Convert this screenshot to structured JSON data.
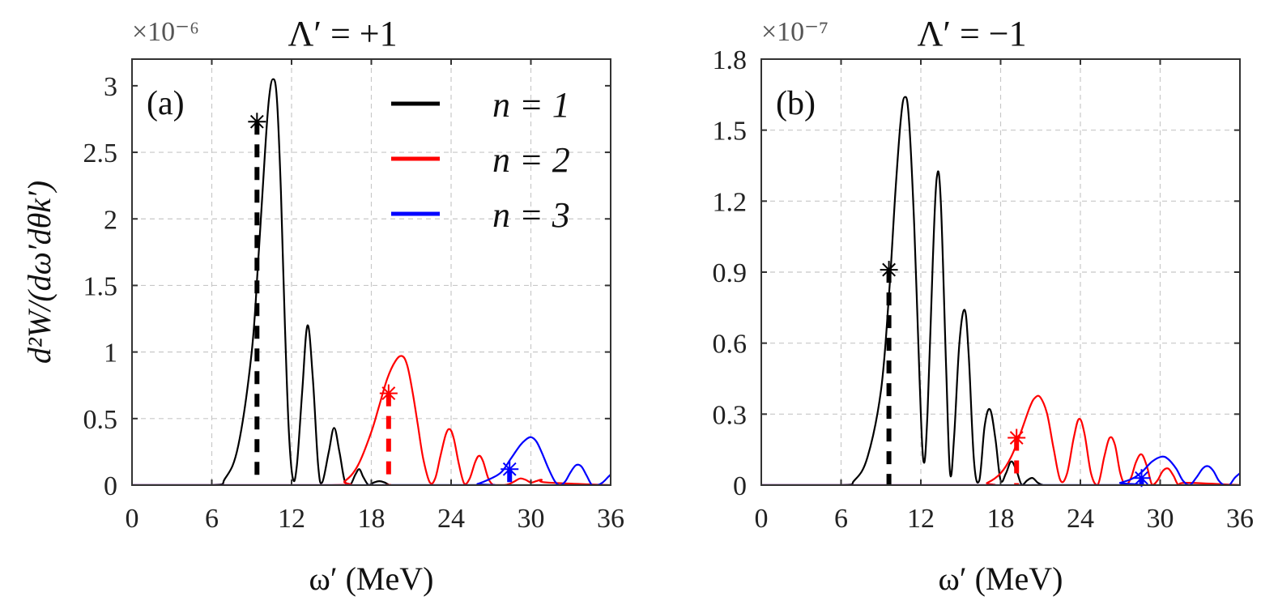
{
  "figure": {
    "ylabel": "d²W/(dω′dθk′)",
    "legend": [
      {
        "label": "n = 1",
        "color": "#000000"
      },
      {
        "label": "n = 2",
        "color": "#ff0000"
      },
      {
        "label": "n = 3",
        "color": "#0000ff"
      }
    ]
  },
  "chart_data": [
    {
      "type": "line",
      "panel_label": "(a)",
      "title": "Λ′ = +1",
      "xlabel": "ω′ (MeV)",
      "scale_label": "×10⁻⁶",
      "xlim": [
        0,
        36
      ],
      "ylim": [
        0,
        3.2
      ],
      "xticks": [
        0,
        6,
        12,
        18,
        24,
        30,
        36
      ],
      "xtick_labels": [
        "0",
        "6",
        "12",
        "18",
        "24",
        "30",
        "36"
      ],
      "yticks": [
        0,
        0.5,
        1,
        1.5,
        2,
        2.5,
        3
      ],
      "ytick_labels": [
        "0",
        "0.5",
        "1",
        "1.5",
        "2",
        "2.5",
        "3"
      ],
      "grid": true,
      "series": [
        {
          "name": "n = 1",
          "color": "#000000",
          "x": [
            0,
            6,
            7,
            8,
            9,
            9.5,
            10,
            10.3,
            10.6,
            10.9,
            11.2,
            11.5,
            11.8,
            12.1,
            12.4,
            12.8,
            13.2,
            13.6,
            14.0,
            14.3,
            14.8,
            15.2,
            15.6,
            16.0,
            16.4,
            16.8,
            17.1,
            17.4,
            17.8,
            18.2,
            18.6,
            19.0,
            19.4,
            19.8,
            20.2,
            36
          ],
          "y": [
            0,
            0,
            0.05,
            0.3,
            1.0,
            1.7,
            2.5,
            2.9,
            3.05,
            2.9,
            2.2,
            1.2,
            0.4,
            0.05,
            0.15,
            0.7,
            1.2,
            0.8,
            0.15,
            0.02,
            0.25,
            0.43,
            0.25,
            0.03,
            0.0,
            0.08,
            0.12,
            0.06,
            0.0,
            0.02,
            0.03,
            0.02,
            0.0,
            0.0,
            0.0,
            0.0
          ]
        },
        {
          "name": "n = 2",
          "color": "#ff0000",
          "x": [
            0,
            15,
            16,
            17,
            18,
            18.6,
            19.2,
            19.8,
            20.3,
            20.7,
            21.1,
            21.5,
            21.9,
            22.4,
            22.8,
            23.2,
            23.6,
            23.9,
            24.2,
            24.6,
            25.0,
            25.4,
            25.8,
            26.1,
            26.4,
            26.8,
            27.2,
            27.6,
            28.0,
            28.4,
            28.8,
            29.2,
            29.6,
            30.0,
            30.4,
            30.8,
            31.2,
            36
          ],
          "y": [
            0,
            0,
            0.03,
            0.15,
            0.4,
            0.6,
            0.8,
            0.93,
            0.97,
            0.9,
            0.7,
            0.45,
            0.2,
            0.02,
            0.05,
            0.22,
            0.38,
            0.42,
            0.35,
            0.15,
            0.01,
            0.05,
            0.17,
            0.22,
            0.18,
            0.05,
            0.0,
            0.0,
            0.0,
            0.01,
            0.03,
            0.05,
            0.04,
            0.02,
            0.03,
            0.04,
            0.02,
            0.0
          ]
        },
        {
          "name": "n = 3",
          "color": "#0000ff",
          "x": [
            0,
            25,
            26,
            27,
            27.8,
            28.5,
            29.2,
            29.6,
            30.0,
            30.4,
            30.8,
            31.3,
            31.8,
            32.2,
            32.6,
            33.0,
            33.4,
            33.8,
            34.2,
            34.6,
            35.0,
            35.4,
            35.8,
            36
          ],
          "y": [
            0,
            0,
            0.01,
            0.05,
            0.1,
            0.2,
            0.3,
            0.34,
            0.36,
            0.33,
            0.25,
            0.13,
            0.03,
            0.0,
            0.03,
            0.1,
            0.15,
            0.14,
            0.07,
            0.0,
            0.0,
            0.02,
            0.06,
            0.08
          ]
        }
      ],
      "markers": [
        {
          "name": "n = 1",
          "color": "#000000",
          "x": 9.4,
          "y": 2.73
        },
        {
          "name": "n = 2",
          "color": "#ff0000",
          "x": 19.3,
          "y": 0.69
        },
        {
          "name": "n = 3",
          "color": "#0000ff",
          "x": 28.4,
          "y": 0.12
        }
      ]
    },
    {
      "type": "line",
      "panel_label": "(b)",
      "title": "Λ′ = −1",
      "xlabel": "ω′ (MeV)",
      "scale_label": "×10⁻⁷",
      "xlim": [
        0,
        36
      ],
      "ylim": [
        0,
        1.8
      ],
      "xticks": [
        0,
        6,
        12,
        18,
        24,
        30,
        36
      ],
      "xtick_labels": [
        "0",
        "6",
        "12",
        "18",
        "24",
        "30",
        "36"
      ],
      "yticks": [
        0,
        0.3,
        0.6,
        0.9,
        1.2,
        1.5,
        1.8
      ],
      "ytick_labels": [
        "0",
        "0.3",
        "0.6",
        "0.9",
        "1.2",
        "1.5",
        "1.8"
      ],
      "grid": true,
      "series": [
        {
          "name": "n = 1",
          "color": "#000000",
          "x": [
            0,
            6,
            7,
            8,
            9,
            9.6,
            10.1,
            10.5,
            10.8,
            11.1,
            11.5,
            11.9,
            12.2,
            12.5,
            12.9,
            13.2,
            13.5,
            13.9,
            14.2,
            14.5,
            14.9,
            15.3,
            15.6,
            16.0,
            16.4,
            16.8,
            17.2,
            17.6,
            18.0,
            18.4,
            18.8,
            19.2,
            19.6,
            20.0,
            20.4,
            20.8,
            21.2,
            21.6,
            36
          ],
          "y": [
            0,
            0,
            0.02,
            0.12,
            0.4,
            0.8,
            1.25,
            1.55,
            1.64,
            1.55,
            1.1,
            0.45,
            0.1,
            0.3,
            0.95,
            1.3,
            1.2,
            0.5,
            0.05,
            0.2,
            0.6,
            0.74,
            0.55,
            0.1,
            0.02,
            0.25,
            0.32,
            0.2,
            0.02,
            0.05,
            0.1,
            0.06,
            0.0,
            0.02,
            0.03,
            0.01,
            0.0,
            0.0,
            0.0
          ]
        },
        {
          "name": "n = 2",
          "color": "#ff0000",
          "x": [
            0,
            16,
            17,
            18,
            18.8,
            19.5,
            20.2,
            20.6,
            21.0,
            21.5,
            22.0,
            22.5,
            23.0,
            23.5,
            23.9,
            24.3,
            24.8,
            25.3,
            25.8,
            26.2,
            26.6,
            27.0,
            27.4,
            27.8,
            28.2,
            28.6,
            29.0,
            29.4,
            29.8,
            30.2,
            30.6,
            31.0,
            31.4,
            32.0,
            36
          ],
          "y": [
            0,
            0,
            0.01,
            0.05,
            0.12,
            0.22,
            0.33,
            0.37,
            0.37,
            0.3,
            0.15,
            0.02,
            0.05,
            0.2,
            0.28,
            0.22,
            0.05,
            0.0,
            0.12,
            0.2,
            0.17,
            0.05,
            0.0,
            0.03,
            0.1,
            0.13,
            0.08,
            0.0,
            0.02,
            0.06,
            0.07,
            0.04,
            0.0,
            0.01,
            0.0
          ]
        },
        {
          "name": "n = 3",
          "color": "#0000ff",
          "x": [
            0,
            26,
            27,
            28,
            28.7,
            29.4,
            30.1,
            30.6,
            31.2,
            31.7,
            32.2,
            32.7,
            33.2,
            33.6,
            34.0,
            34.4,
            34.8,
            35.2,
            35.6,
            36
          ],
          "y": [
            0,
            0,
            0.01,
            0.03,
            0.06,
            0.1,
            0.12,
            0.11,
            0.07,
            0.02,
            0.0,
            0.03,
            0.07,
            0.08,
            0.06,
            0.02,
            0.0,
            0.0,
            0.03,
            0.05
          ]
        }
      ],
      "markers": [
        {
          "name": "n = 1",
          "color": "#000000",
          "x": 9.6,
          "y": 0.91
        },
        {
          "name": "n = 2",
          "color": "#ff0000",
          "x": 19.2,
          "y": 0.2
        },
        {
          "name": "n = 3",
          "color": "#0000ff",
          "x": 28.6,
          "y": 0.03
        }
      ]
    }
  ]
}
